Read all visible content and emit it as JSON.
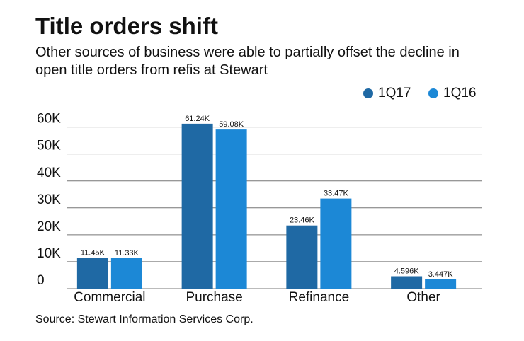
{
  "chart_data": {
    "type": "bar",
    "title": "Title orders shift",
    "subtitle": "Other sources of business were able to partially offset the decline in open title orders from refis at Stewart",
    "source": "Source: Stewart Information Services Corp.",
    "categories": [
      "Commercial",
      "Purchase",
      "Refinance",
      "Other"
    ],
    "series": [
      {
        "name": "1Q17",
        "color": "#1f69a4",
        "values": [
          11450,
          61240,
          23460,
          4596
        ],
        "value_labels": [
          "11.45K",
          "61.24K",
          "23.46K",
          "4.596K"
        ]
      },
      {
        "name": "1Q16",
        "color": "#1c88d6",
        "values": [
          11330,
          59080,
          33470,
          3447
        ],
        "value_labels": [
          "11.33K",
          "59.08K",
          "33.47K",
          "3.447K"
        ]
      }
    ],
    "ylim": [
      0,
      62000
    ],
    "yticks": [
      0,
      {
        "value": 10000,
        "label": "10K"
      },
      {
        "value": 20000,
        "label": "20K"
      },
      {
        "value": 30000,
        "label": "30K"
      },
      {
        "value": 40000,
        "label": "40K"
      },
      {
        "value": 50000,
        "label": "50K"
      },
      {
        "value": 60000,
        "label": "60K"
      }
    ],
    "grid": true,
    "legend": "top-right"
  }
}
